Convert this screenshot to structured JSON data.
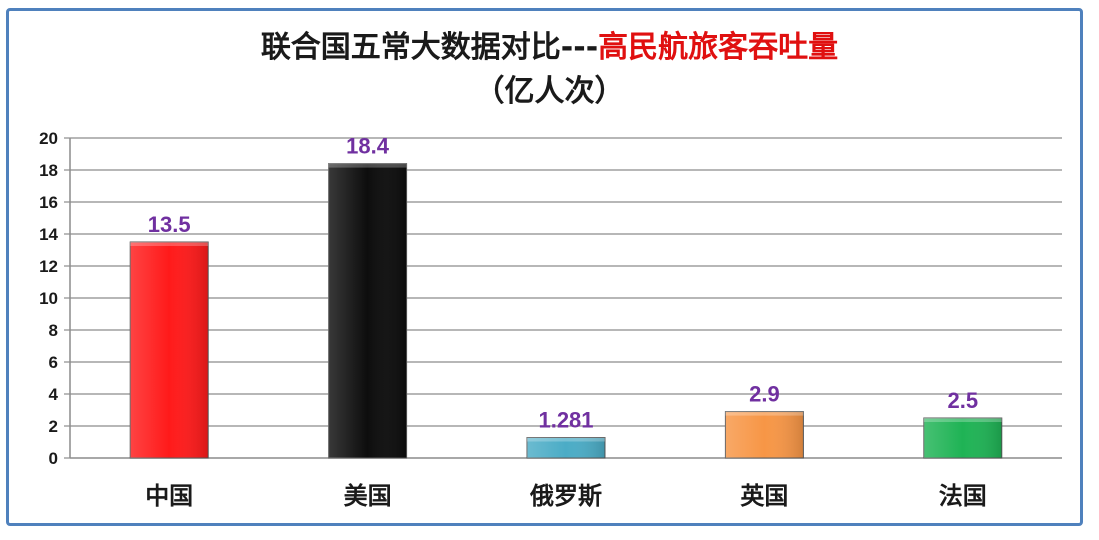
{
  "chart_data": {
    "type": "bar",
    "title_part1": "联合国五常大数据对比---",
    "title_part2": "高民航旅客吞吐量",
    "subtitle": "（亿人次）",
    "categories": [
      "中国",
      "美国",
      "俄罗斯",
      "英国",
      "法国"
    ],
    "values": [
      13.5,
      18.4,
      1.281,
      2.9,
      2.5
    ],
    "data_labels": [
      "13.5",
      "18.4",
      "1.281",
      "2.9",
      "2.5"
    ],
    "colors": [
      "#ff1a1a",
      "#0d0d0d",
      "#4bacc6",
      "#f79646",
      "#1fb355"
    ],
    "ylim": [
      0,
      20
    ],
    "yticks": [
      0,
      2,
      4,
      6,
      8,
      10,
      12,
      14,
      16,
      18,
      20
    ],
    "grid": true,
    "legend": "none",
    "xlabel": "",
    "ylabel": ""
  }
}
